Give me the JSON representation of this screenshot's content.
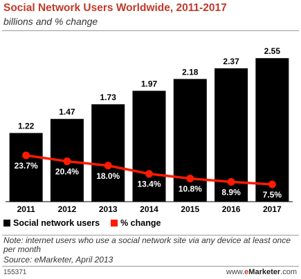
{
  "header": {
    "title": "Social Network Users Worldwide, 2011-2017",
    "subtitle": "billions and % change"
  },
  "legend": {
    "users_label": "Social network users",
    "change_label": "% change"
  },
  "footer": {
    "note": "Note: internet users who use a social network site via any device at least once per month",
    "source": "Source: eMarketer, April 2013",
    "chart_id": "155371",
    "brand_prefix": "www.",
    "brand_e": "e",
    "brand_main": "Marketer",
    "brand_suffix": ".com"
  },
  "colors": {
    "bar": "#000000",
    "line": "#ff1a00",
    "title": "#c2392a"
  },
  "chart_data": {
    "type": "bar",
    "categories": [
      "2011",
      "2012",
      "2013",
      "2014",
      "2015",
      "2016",
      "2017"
    ],
    "series": [
      {
        "name": "Social network users",
        "type": "bar",
        "values": [
          1.22,
          1.47,
          1.73,
          1.97,
          2.18,
          2.37,
          2.55
        ],
        "labels": [
          "1.22",
          "1.47",
          "1.73",
          "1.97",
          "2.18",
          "2.37",
          "2.55"
        ]
      },
      {
        "name": "% change",
        "type": "line",
        "values": [
          23.7,
          20.4,
          18.0,
          13.4,
          10.8,
          8.9,
          7.5
        ],
        "labels": [
          "23.7%",
          "20.4%",
          "18.0%",
          "13.4%",
          "10.8%",
          "8.9%",
          "7.5%"
        ]
      }
    ],
    "ylim": [
      0,
      2.7
    ],
    "legend_position": "bottom-left",
    "grid": false
  }
}
